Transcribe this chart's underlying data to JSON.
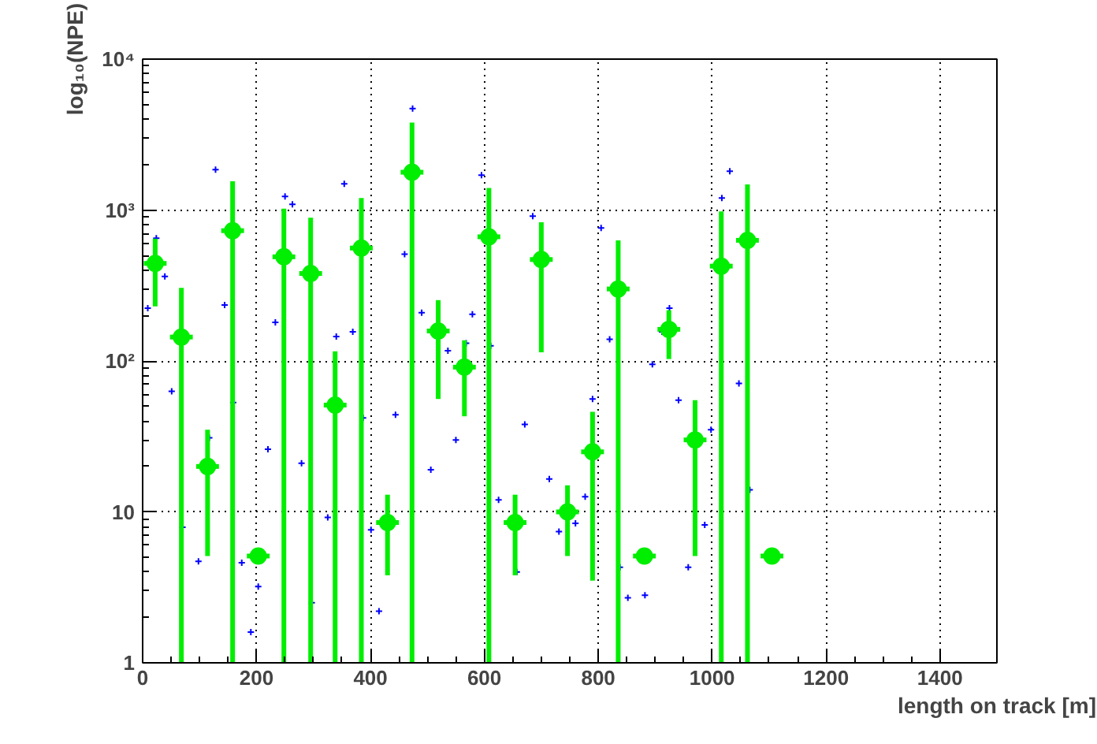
{
  "chart_data": {
    "type": "scatter",
    "xlabel": "length on track [m]",
    "ylabel": "log₁₀(NPE)",
    "log": "y",
    "grid": true,
    "xlim": [
      0,
      1500
    ],
    "ylim": [
      1,
      10000
    ],
    "xticks": [
      0,
      200,
      400,
      600,
      800,
      1000,
      1200,
      1400
    ],
    "yticks": [
      1,
      10,
      {
        "value": 100,
        "label": "10²"
      },
      {
        "value": 1000,
        "label": "10³"
      },
      {
        "value": 10000,
        "label": "10⁴"
      }
    ],
    "series": [
      {
        "color": "#0000ff",
        "marker": "cross",
        "x": [
          24,
          9,
          39,
          51,
          70,
          98,
          117,
          128,
          144,
          159,
          174,
          190,
          203,
          220,
          233,
          250,
          263,
          279,
          297,
          325,
          340,
          354,
          369,
          387,
          401,
          415,
          444,
          460,
          474,
          490,
          506,
          536,
          550,
          568,
          579,
          595,
          611,
          625,
          657,
          671,
          685,
          714,
          731,
          760,
          777,
          790,
          805,
          820,
          838,
          852,
          882,
          895,
          912,
          925,
          941,
          958,
          987,
          998,
          1017,
          1031,
          1047,
          1066
        ],
        "values": [
          650,
          224,
          363,
          63,
          7.9,
          4.7,
          31,
          1850,
          235,
          53,
          4.6,
          1.6,
          3.2,
          26,
          180,
          1230,
          1090,
          21,
          2.5,
          9.2,
          145,
          1490,
          156,
          42,
          7.6,
          2.2,
          44,
          510,
          4700,
          209,
          19,
          117,
          30,
          131,
          204,
          1700,
          126,
          12,
          4,
          38,
          910,
          16.5,
          7.4,
          8.4,
          12.6,
          56,
          760,
          139,
          4.3,
          2.7,
          2.8,
          95,
          156,
          224,
          55,
          4.3,
          8.2,
          35,
          1200,
          1810,
          71,
          14
        ]
      },
      {
        "color": "#00ee00",
        "marker": "circle",
        "x": [
          22,
          68,
          114,
          158,
          203,
          248,
          295,
          338,
          384,
          430,
          473,
          519,
          565,
          608,
          654,
          700,
          746,
          790,
          835,
          881,
          924,
          970,
          1016,
          1062,
          1105
        ],
        "values": [
          443,
          144,
          20,
          730,
          5.1,
          490,
          380,
          51,
          560,
          8.5,
          1780,
          158,
          91,
          665,
          8.5,
          470,
          10,
          25,
          300,
          5.1,
          162,
          30,
          425,
          630,
          5.1
        ],
        "errors": [
          [
            230,
            646
          ],
          [
            1,
            305
          ],
          [
            5.1,
            35
          ],
          [
            1,
            1550
          ],
          null,
          [
            1,
            1020
          ],
          [
            1,
            890
          ],
          [
            1,
            116
          ],
          [
            1,
            1200
          ],
          [
            3.8,
            13
          ],
          [
            1,
            3800
          ],
          [
            56,
            253
          ],
          [
            43,
            137
          ],
          [
            1,
            1400
          ],
          [
            3.8,
            13
          ],
          [
            114,
            830
          ],
          [
            5.1,
            15
          ],
          [
            3.5,
            46
          ],
          [
            1,
            630
          ],
          null,
          [
            103,
            217
          ],
          [
            5.1,
            55
          ],
          [
            1,
            980
          ],
          [
            1,
            1480
          ],
          null
        ],
        "xerrors": [
          20,
          20,
          20,
          20,
          20,
          20,
          20,
          20,
          20,
          20,
          20,
          20,
          20,
          20,
          20,
          20,
          20,
          20,
          20,
          20,
          20,
          20,
          20,
          20,
          20
        ]
      }
    ]
  }
}
